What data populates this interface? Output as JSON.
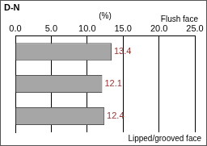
{
  "chart_data": {
    "type": "bar",
    "orientation": "horizontal",
    "title": "D-N",
    "x_label": "(%)",
    "annotations": [
      "Flush face",
      "Lipped/grooved face"
    ],
    "categories": [
      null,
      null,
      null
    ],
    "values": [
      13.4,
      12.1,
      12.4
    ],
    "color": "#a6a6a6",
    "xlim": [
      0,
      25
    ],
    "xticks": [
      {
        "value": 0,
        "label": "0.0"
      },
      {
        "value": 5,
        "label": "5.0"
      },
      {
        "value": 10,
        "label": "10.0"
      },
      {
        "value": 15,
        "label": "15.0"
      },
      {
        "value": 20,
        "label": "20.0"
      },
      {
        "value": 25,
        "label": "25.0"
      }
    ],
    "grid": true,
    "data_labels": true,
    "tick_labels": "x"
  }
}
